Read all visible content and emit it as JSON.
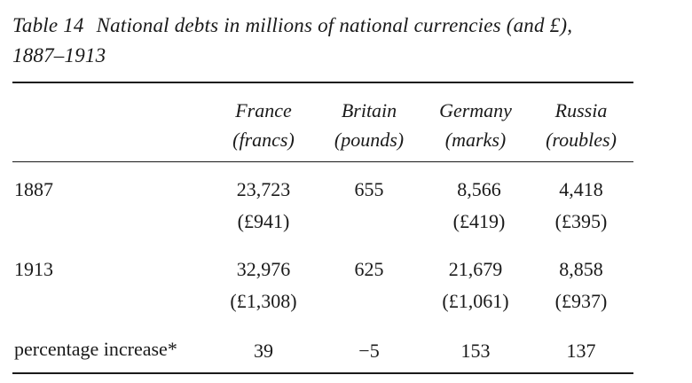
{
  "caption": {
    "number": "Table 14",
    "title_line1": "National debts in millions of national currencies (and £),",
    "title_line2": "1887–1913"
  },
  "columns": [
    {
      "name": "France",
      "unit": "(francs)"
    },
    {
      "name": "Britain",
      "unit": "(pounds)"
    },
    {
      "name": "Germany",
      "unit": "(marks)"
    },
    {
      "name": "Russia",
      "unit": "(roubles)"
    }
  ],
  "rows": [
    {
      "label": "1887",
      "cells": [
        {
          "value": "23,723",
          "sterling": "(£941)"
        },
        {
          "value": "655",
          "sterling": ""
        },
        {
          "value": "8,566",
          "sterling": "(£419)"
        },
        {
          "value": "4,418",
          "sterling": "(£395)"
        }
      ]
    },
    {
      "label": "1913",
      "cells": [
        {
          "value": "32,976",
          "sterling": "(£1,308)"
        },
        {
          "value": "625",
          "sterling": ""
        },
        {
          "value": "21,679",
          "sterling": "(£1,061)"
        },
        {
          "value": "8,858",
          "sterling": "(£937)"
        }
      ]
    },
    {
      "label": "percentage increase*",
      "cells": [
        {
          "value": "39",
          "sterling": ""
        },
        {
          "value": "−5",
          "sterling": ""
        },
        {
          "value": "153",
          "sterling": ""
        },
        {
          "value": "137",
          "sterling": ""
        }
      ]
    }
  ]
}
